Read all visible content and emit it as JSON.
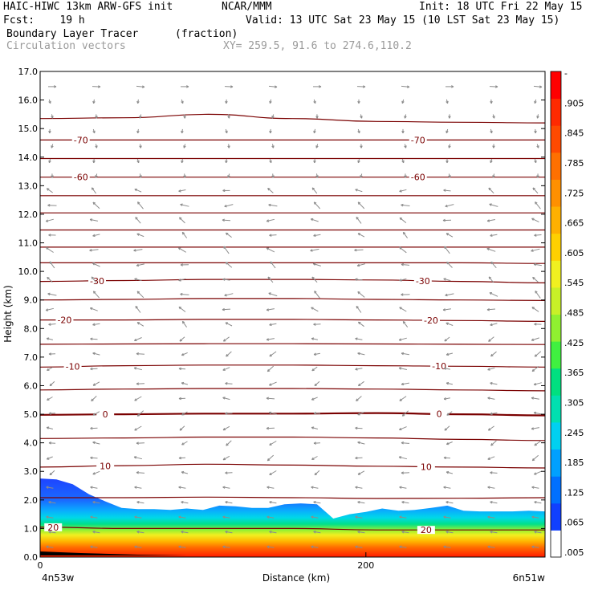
{
  "header": {
    "model": "HAIC-HIWC 13km ARW-GFS init",
    "org": "NCAR/MMM",
    "init": "Init: 18 UTC Fri 22 May 15",
    "fcst": "Fcst:    19 h",
    "valid": "Valid: 13 UTC Sat 23 May 15 (10 LST Sat 23 May 15)",
    "field": "Boundary Layer Tracer",
    "field_units": "(fraction)",
    "vectors": "Circulation vectors",
    "xy": "XY= 259.5, 91.6 to 274.6,110.2"
  },
  "colors": {
    "contour": "#7a0000",
    "vector": "#8c8c8c",
    "colorbar": [
      "#ffffff",
      "#1040ff",
      "#0070ff",
      "#00a0ff",
      "#00d0f0",
      "#00e0b0",
      "#00e080",
      "#40f040",
      "#90f030",
      "#c8f028",
      "#f0f020",
      "#ffd000",
      "#ffb000",
      "#ff9000",
      "#ff7000",
      "#ff4a00",
      "#ff2a00",
      "#ff0000"
    ]
  },
  "chart_data": {
    "type": "contour-cross-section",
    "xlabel": "Distance (km)",
    "ylabel": "Height (km)",
    "x_tick_labels": [
      "0",
      "200"
    ],
    "x_ticks": [
      0,
      200
    ],
    "xlim": [
      0,
      310
    ],
    "ylim": [
      0,
      17
    ],
    "y_ticks": [
      0.0,
      1.0,
      2.0,
      3.0,
      4.0,
      5.0,
      6.0,
      7.0,
      8.0,
      9.0,
      10.0,
      11.0,
      12.0,
      13.0,
      14.0,
      15.0,
      16.0,
      17.0
    ],
    "y_tick_labels": [
      "0.0",
      "1.0",
      "2.0",
      "3.0",
      "4.0",
      "5.0",
      "6.0",
      "7.0",
      "8.0",
      "9.0",
      "10.0",
      "11.0",
      "12.0",
      "13.0",
      "14.0",
      "15.0",
      "16.0",
      "17.0"
    ],
    "endpoint_labels": [
      "4n53w",
      "6n51w"
    ],
    "colorbar_levels": [
      "-",
      ".905",
      ".845",
      ".785",
      ".725",
      ".665",
      ".605",
      ".545",
      ".485",
      ".425",
      ".365",
      ".305",
      ".245",
      ".185",
      ".125",
      ".065",
      ".005"
    ],
    "isotherms": [
      {
        "heights": [
          1.05,
          1.0,
          1.0,
          1.0,
          0.95,
          0.95,
          0.95
        ],
        "labels": [
          {
            "x": 8,
            "text": "20"
          },
          {
            "x": 237,
            "text": "20"
          }
        ]
      },
      {
        "heights": [
          2.08,
          2.08,
          2.1,
          2.08,
          2.05,
          2.06,
          2.08
        ],
        "labels": []
      },
      {
        "heights": [
          3.15,
          3.2,
          3.25,
          3.22,
          3.18,
          3.15,
          3.12
        ],
        "labels": [
          {
            "x": 40,
            "text": "10"
          },
          {
            "x": 237,
            "text": "10"
          }
        ]
      },
      {
        "heights": [
          4.15,
          4.17,
          4.2,
          4.2,
          4.17,
          4.12,
          4.08
        ],
        "labels": []
      },
      {
        "heights": [
          4.98,
          5.0,
          5.02,
          5.02,
          5.04,
          5.0,
          4.96
        ],
        "labels": [
          {
            "x": 40,
            "text": "0"
          },
          {
            "x": 245,
            "text": "0"
          }
        ]
      },
      {
        "heights": [
          5.85,
          5.88,
          5.9,
          5.9,
          5.88,
          5.85,
          5.82
        ],
        "labels": []
      },
      {
        "heights": [
          6.65,
          6.7,
          6.72,
          6.72,
          6.7,
          6.68,
          6.65
        ],
        "labels": [
          {
            "x": 20,
            "text": "-10"
          },
          {
            "x": 245,
            "text": "-10"
          }
        ]
      },
      {
        "heights": [
          7.45,
          7.46,
          7.47,
          7.47,
          7.46,
          7.45,
          7.44
        ],
        "labels": []
      },
      {
        "heights": [
          8.3,
          8.3,
          8.32,
          8.32,
          8.3,
          8.28,
          8.25
        ],
        "labels": [
          {
            "x": 15,
            "text": "-20"
          },
          {
            "x": 240,
            "text": "-20"
          }
        ]
      },
      {
        "heights": [
          9.0,
          9.02,
          9.05,
          9.05,
          9.02,
          9.0,
          8.98
        ],
        "labels": []
      },
      {
        "heights": [
          9.65,
          9.68,
          9.72,
          9.72,
          9.7,
          9.65,
          9.6
        ],
        "labels": [
          {
            "x": 35,
            "text": "-30"
          },
          {
            "x": 235,
            "text": "-30"
          }
        ]
      },
      {
        "heights": [
          10.3,
          10.3,
          10.3,
          10.3,
          10.3,
          10.3,
          10.28
        ],
        "labels": []
      },
      {
        "heights": [
          10.85,
          10.85,
          10.85,
          10.85,
          10.85,
          10.85,
          10.85
        ],
        "labels": []
      },
      {
        "heights": [
          11.45,
          11.45,
          11.45,
          11.45,
          11.45,
          11.45,
          11.45
        ],
        "labels": []
      },
      {
        "heights": [
          12.05,
          12.05,
          12.05,
          12.05,
          12.05,
          12.05,
          12.05
        ],
        "labels": []
      },
      {
        "heights": [
          12.65,
          12.65,
          12.65,
          12.65,
          12.65,
          12.65,
          12.65
        ],
        "labels": []
      },
      {
        "heights": [
          13.3,
          13.3,
          13.3,
          13.3,
          13.3,
          13.3,
          13.3
        ],
        "labels": [
          {
            "x": 25,
            "text": "-60"
          },
          {
            "x": 232,
            "text": "-60"
          }
        ]
      },
      {
        "heights": [
          13.95,
          13.95,
          13.95,
          13.95,
          13.95,
          13.95,
          13.95
        ],
        "labels": []
      },
      {
        "heights": [
          14.6,
          14.6,
          14.6,
          14.6,
          14.6,
          14.6,
          14.6
        ],
        "labels": [
          {
            "x": 25,
            "text": "-70"
          },
          {
            "x": 232,
            "text": "-70"
          }
        ]
      },
      {
        "heights": [
          15.35,
          15.38,
          15.5,
          15.35,
          15.25,
          15.22,
          15.2
        ],
        "labels": []
      }
    ],
    "tracer_field": {
      "x": [
        0,
        10,
        20,
        30,
        40,
        50,
        60,
        70,
        80,
        90,
        100,
        110,
        120,
        130,
        140,
        150,
        160,
        170,
        180,
        190,
        200,
        210,
        220,
        230,
        240,
        250,
        260,
        270,
        280,
        290,
        300,
        310
      ],
      "top_height": [
        2.75,
        2.72,
        2.55,
        2.2,
        1.95,
        1.72,
        1.68,
        1.68,
        1.65,
        1.7,
        1.65,
        1.8,
        1.78,
        1.72,
        1.72,
        1.85,
        1.88,
        1.85,
        1.35,
        1.5,
        1.58,
        1.7,
        1.62,
        1.65,
        1.72,
        1.8,
        1.62,
        1.6,
        1.6,
        1.6,
        1.62,
        1.6
      ]
    }
  }
}
